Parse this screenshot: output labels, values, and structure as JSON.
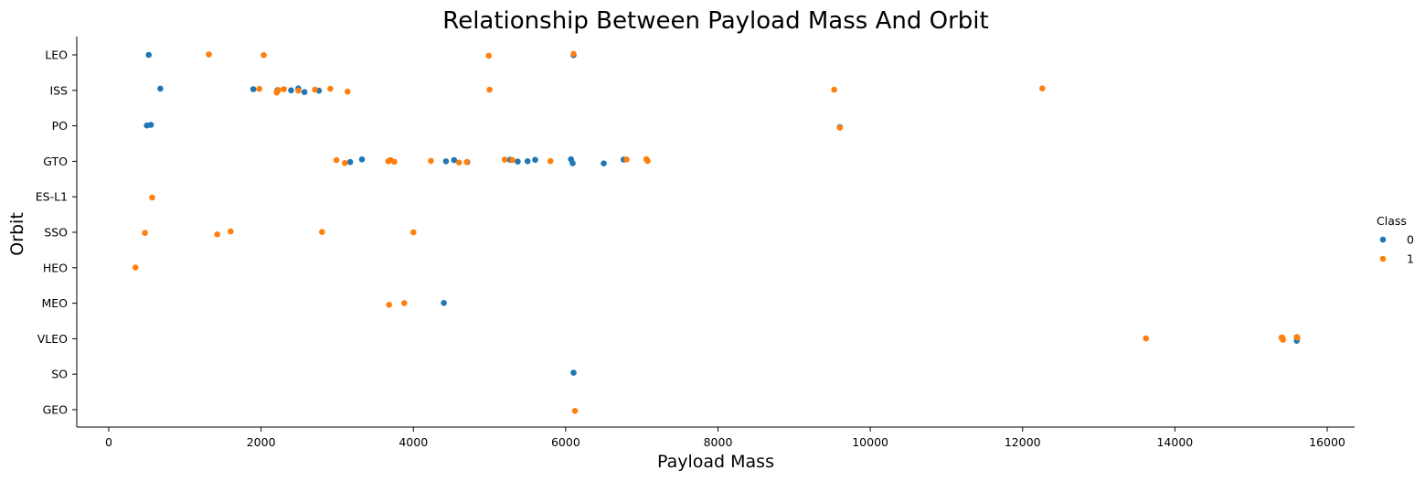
{
  "chart_data": {
    "type": "scatter",
    "title": "Relationship Between Payload Mass And Orbit",
    "xlabel": "Payload Mass",
    "ylabel": "Orbit",
    "xlim": [
      -2100,
      16000
    ],
    "xticks": [
      0,
      2000,
      4000,
      6000,
      8000,
      10000,
      12000,
      14000,
      16000
    ],
    "categories": [
      "LEO",
      "ISS",
      "PO",
      "GTO",
      "ES-L1",
      "SSO",
      "HEO",
      "MEO",
      "VLEO",
      "SO",
      "GEO"
    ],
    "grid": false,
    "legend": {
      "title": "Class",
      "placement": "right"
    },
    "series": [
      {
        "name": "0",
        "color": "#1f77b4",
        "points": [
          {
            "x": 525,
            "y": "LEO"
          },
          {
            "x": 6104,
            "y": "LEO"
          },
          {
            "x": 677,
            "y": "ISS"
          },
          {
            "x": 1898,
            "y": "ISS"
          },
          {
            "x": 2216,
            "y": "ISS"
          },
          {
            "x": 2395,
            "y": "ISS"
          },
          {
            "x": 2490,
            "y": "ISS"
          },
          {
            "x": 2570,
            "y": "ISS"
          },
          {
            "x": 2760,
            "y": "ISS"
          },
          {
            "x": 500,
            "y": "PO"
          },
          {
            "x": 553,
            "y": "PO"
          },
          {
            "x": 9600,
            "y": "PO"
          },
          {
            "x": 3170,
            "y": "GTO"
          },
          {
            "x": 3325,
            "y": "GTO"
          },
          {
            "x": 4428,
            "y": "GTO"
          },
          {
            "x": 4535,
            "y": "GTO"
          },
          {
            "x": 4707,
            "y": "GTO"
          },
          {
            "x": 5271,
            "y": "GTO"
          },
          {
            "x": 5370,
            "y": "GTO"
          },
          {
            "x": 5500,
            "y": "GTO"
          },
          {
            "x": 5600,
            "y": "GTO"
          },
          {
            "x": 6070,
            "y": "GTO"
          },
          {
            "x": 6092,
            "y": "GTO"
          },
          {
            "x": 6500,
            "y": "GTO"
          },
          {
            "x": 6761,
            "y": "GTO"
          },
          {
            "x": 4400,
            "y": "MEO"
          },
          {
            "x": 15600,
            "y": "VLEO"
          },
          {
            "x": 6104,
            "y": "SO"
          }
        ]
      },
      {
        "name": "1",
        "color": "#ff7f0e",
        "points": [
          {
            "x": 1316,
            "y": "LEO"
          },
          {
            "x": 2034,
            "y": "LEO"
          },
          {
            "x": 4990,
            "y": "LEO"
          },
          {
            "x": 6104,
            "y": "LEO"
          },
          {
            "x": 1977,
            "y": "ISS"
          },
          {
            "x": 2205,
            "y": "ISS"
          },
          {
            "x": 2227,
            "y": "ISS"
          },
          {
            "x": 2300,
            "y": "ISS"
          },
          {
            "x": 2490,
            "y": "ISS"
          },
          {
            "x": 2708,
            "y": "ISS"
          },
          {
            "x": 2910,
            "y": "ISS"
          },
          {
            "x": 3136,
            "y": "ISS"
          },
          {
            "x": 5000,
            "y": "ISS"
          },
          {
            "x": 9525,
            "y": "ISS"
          },
          {
            "x": 12259,
            "y": "ISS"
          },
          {
            "x": 9600,
            "y": "PO"
          },
          {
            "x": 2990,
            "y": "GTO"
          },
          {
            "x": 3100,
            "y": "GTO"
          },
          {
            "x": 3669,
            "y": "GTO"
          },
          {
            "x": 3700,
            "y": "GTO"
          },
          {
            "x": 3750,
            "y": "GTO"
          },
          {
            "x": 4230,
            "y": "GTO"
          },
          {
            "x": 4600,
            "y": "GTO"
          },
          {
            "x": 4700,
            "y": "GTO"
          },
          {
            "x": 5200,
            "y": "GTO"
          },
          {
            "x": 5300,
            "y": "GTO"
          },
          {
            "x": 5800,
            "y": "GTO"
          },
          {
            "x": 6800,
            "y": "GTO"
          },
          {
            "x": 7060,
            "y": "GTO"
          },
          {
            "x": 7076,
            "y": "GTO"
          },
          {
            "x": 570,
            "y": "ES-L1"
          },
          {
            "x": 475,
            "y": "SSO"
          },
          {
            "x": 1425,
            "y": "SSO"
          },
          {
            "x": 1600,
            "y": "SSO"
          },
          {
            "x": 2800,
            "y": "SSO"
          },
          {
            "x": 4000,
            "y": "SSO"
          },
          {
            "x": 350,
            "y": "HEO"
          },
          {
            "x": 3681,
            "y": "MEO"
          },
          {
            "x": 3880,
            "y": "MEO"
          },
          {
            "x": 13620,
            "y": "VLEO"
          },
          {
            "x": 15400,
            "y": "VLEO"
          },
          {
            "x": 15410,
            "y": "VLEO"
          },
          {
            "x": 15420,
            "y": "VLEO"
          },
          {
            "x": 15600,
            "y": "VLEO"
          },
          {
            "x": 15610,
            "y": "VLEO"
          },
          {
            "x": 6123,
            "y": "GEO"
          }
        ]
      }
    ]
  }
}
